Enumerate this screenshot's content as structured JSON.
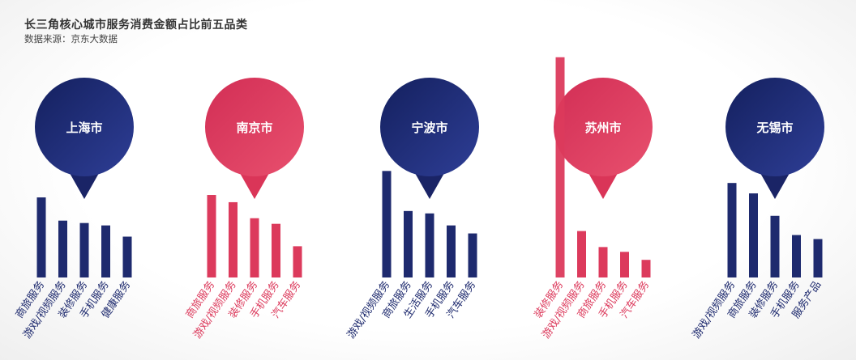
{
  "header": {
    "title": "长三角核心城市服务消费金额占比前五品类",
    "source": "数据来源：京东大数据"
  },
  "colors": {
    "navy": "#1e2a6e",
    "crimson": "#dc3a5c"
  },
  "chart_data": [
    {
      "type": "bar",
      "city": "上海市",
      "color": "#1e2a6e",
      "categories": [
        "商旅服务",
        "游戏/视频服务",
        "装修服务",
        "手机服务",
        "健康服务"
      ],
      "values": [
        100,
        71,
        68,
        65,
        51
      ],
      "ylim": [
        0,
        280
      ]
    },
    {
      "type": "bar",
      "city": "南京市",
      "color": "#dc3a5c",
      "categories": [
        "商旅服务",
        "游戏/视频服务",
        "装修服务",
        "手机服务",
        "汽车服务"
      ],
      "values": [
        103,
        94,
        74,
        67,
        39
      ],
      "ylim": [
        0,
        280
      ]
    },
    {
      "type": "bar",
      "city": "宁波市",
      "color": "#1e2a6e",
      "categories": [
        "游戏/视频服务",
        "商旅服务",
        "生活服务",
        "手机服务",
        "汽车服务"
      ],
      "values": [
        133,
        83,
        80,
        65,
        55
      ],
      "ylim": [
        0,
        280
      ]
    },
    {
      "type": "bar",
      "city": "苏州市",
      "color": "#dc3a5c",
      "categories": [
        "装修服务",
        "游戏/视频服务",
        "商旅服务",
        "手机服务",
        "汽车服务"
      ],
      "values": [
        275,
        58,
        38,
        32,
        22
      ],
      "ylim": [
        0,
        280
      ]
    },
    {
      "type": "bar",
      "city": "无锡市",
      "color": "#1e2a6e",
      "categories": [
        "游戏/视频服务",
        "商旅服务",
        "装修服务",
        "手机服务",
        "服务产品"
      ],
      "values": [
        118,
        105,
        77,
        53,
        48
      ],
      "ylim": [
        0,
        280
      ]
    }
  ]
}
